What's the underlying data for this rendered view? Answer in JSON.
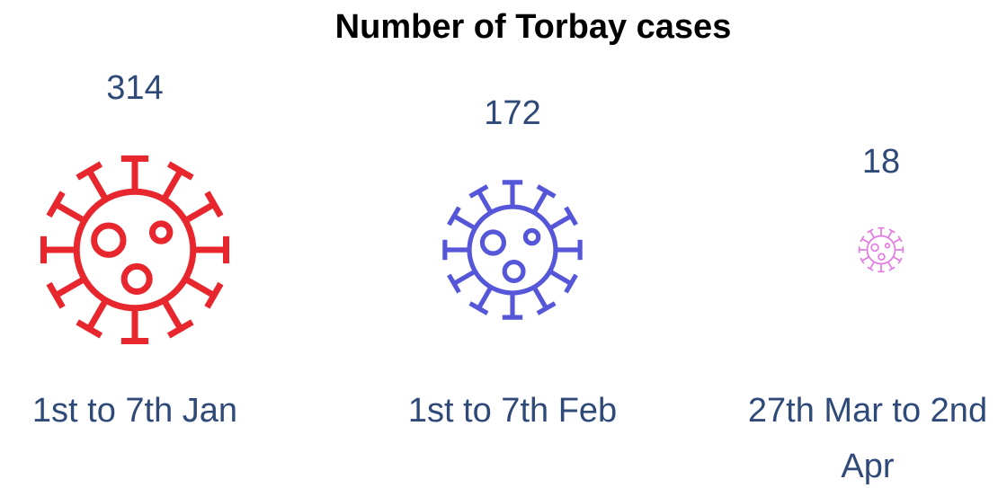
{
  "chart_data": {
    "type": "pictogram",
    "title": "Number of Torbay cases",
    "categories": [
      "1st to 7th Jan",
      "1st to 7th Feb",
      "27th Mar to 2nd Apr"
    ],
    "values": [
      314,
      172,
      18
    ],
    "colors": [
      "#e8262d",
      "#5656d8",
      "#e27ae2"
    ]
  }
}
